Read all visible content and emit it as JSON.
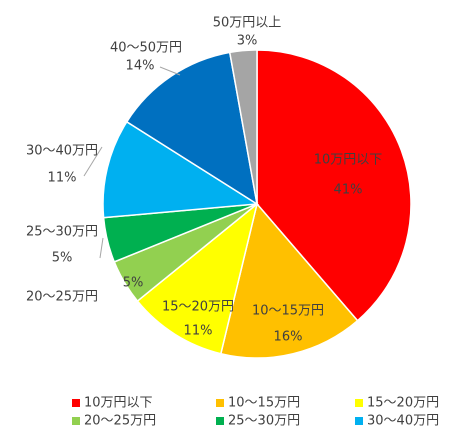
{
  "chart_data": {
    "type": "pie",
    "categories": [
      "10万円以下",
      "10～15万円",
      "15～20万円",
      "20～25万円",
      "25～30万円",
      "30～40万円",
      "40～50万円",
      "50万円以上"
    ],
    "values": [
      41,
      16,
      11,
      5,
      5,
      11,
      14,
      3
    ],
    "value_labels": [
      "41%",
      "16%",
      "11%",
      "5%",
      "5%",
      "11%",
      "14%",
      "3%"
    ],
    "colors": [
      "#ff0000",
      "#ffc000",
      "#ffff00",
      "#92d050",
      "#00b050",
      "#00b0f0",
      "#0070c0",
      "#a5a5a5"
    ],
    "legend_placement": "bottom"
  }
}
